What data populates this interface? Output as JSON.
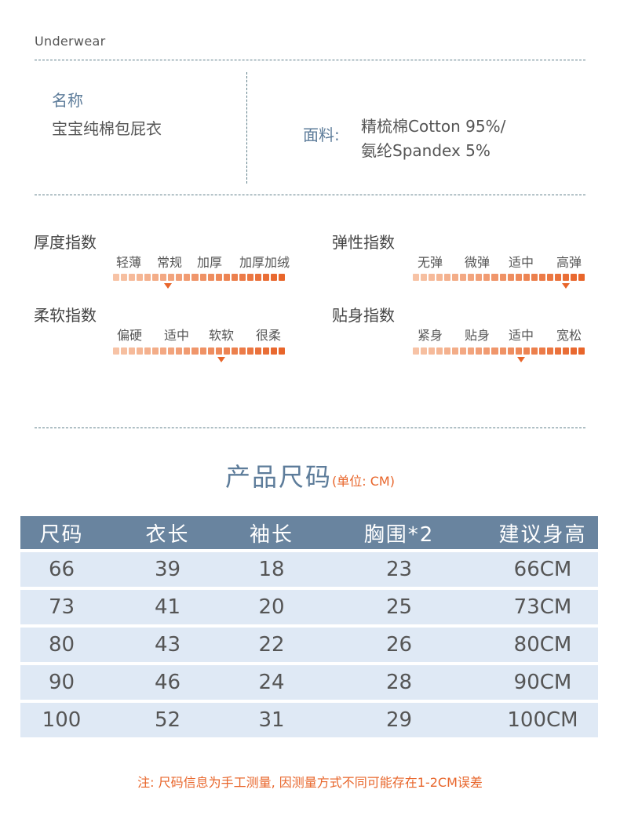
{
  "header": {
    "brand": "Underwear"
  },
  "product": {
    "name_label": "名称",
    "name_value": "宝宝纯棉包屁衣",
    "material_label": "面料:",
    "material_line1": "精梳棉Cotton 95%/",
    "material_line2": "氨纶Spandex 5%"
  },
  "indices": [
    {
      "title": "厚度指数",
      "levels": [
        "轻薄",
        "常规",
        "加厚",
        "加厚加绒"
      ],
      "value_fraction": 0.32
    },
    {
      "title": "弹性指数",
      "levels": [
        "无弹",
        "微弹",
        "适中",
        "高弹"
      ],
      "value_fraction": 0.89
    },
    {
      "title": "柔软指数",
      "levels": [
        "偏硬",
        "适中",
        "软软",
        "很柔"
      ],
      "value_fraction": 0.63
    },
    {
      "title": "贴身指数",
      "levels": [
        "紧身",
        "贴身",
        "适中",
        "宽松"
      ],
      "value_fraction": 0.63
    }
  ],
  "size_chart": {
    "title": "产品尺码",
    "unit": "(单位: CM)",
    "headers": [
      "尺码",
      "衣长",
      "袖长",
      "胸围*2",
      "建议身高"
    ],
    "rows": [
      [
        "66",
        "39",
        "18",
        "23",
        "66CM"
      ],
      [
        "73",
        "41",
        "20",
        "25",
        "73CM"
      ],
      [
        "80",
        "43",
        "22",
        "26",
        "80CM"
      ],
      [
        "90",
        "46",
        "24",
        "28",
        "90CM"
      ],
      [
        "100",
        "52",
        "31",
        "29",
        "100CM"
      ]
    ]
  },
  "note": "注: 尺码信息为手工测量, 因测量方式不同可能存在1-2CM误差",
  "colors": {
    "accent": "#e8652a",
    "heading_blue": "#5d7c9a",
    "table_header": "#69849f",
    "table_row": "#dfe9f5",
    "bar_light": "#f7c3a6",
    "bar_dark": "#e8652a"
  }
}
